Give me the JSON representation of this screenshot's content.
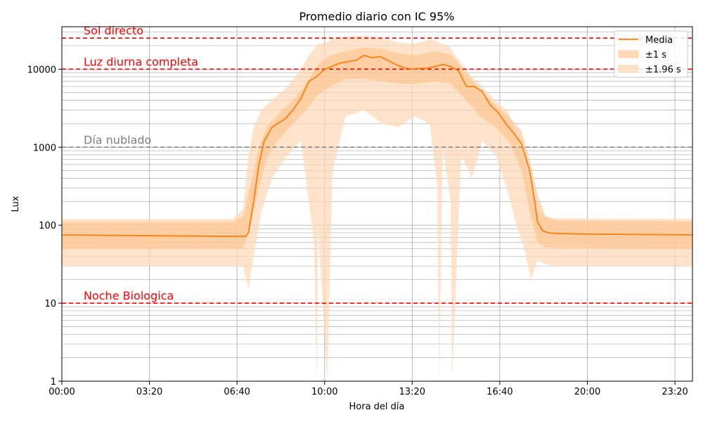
{
  "chart_data": {
    "type": "line",
    "title": "Promedio diario con IC 95%",
    "xlabel": "Hora del día",
    "ylabel": "Lux",
    "yscale": "log",
    "ylim": [
      1,
      35000
    ],
    "xlim_hours": [
      0,
      24
    ],
    "x_ticks": [
      {
        "hour": 0,
        "label": "00:00"
      },
      {
        "hour": 3.3333,
        "label": "03:20"
      },
      {
        "hour": 6.6667,
        "label": "06:40"
      },
      {
        "hour": 10,
        "label": "10:00"
      },
      {
        "hour": 13.3333,
        "label": "13:20"
      },
      {
        "hour": 16.6667,
        "label": "16:40"
      },
      {
        "hour": 20,
        "label": "20:00"
      },
      {
        "hour": 23.3333,
        "label": "23:20"
      }
    ],
    "y_ticks": [
      {
        "value": 1,
        "label": "1"
      },
      {
        "value": 10,
        "label": "10"
      },
      {
        "value": 100,
        "label": "100"
      },
      {
        "value": 1000,
        "label": "1000"
      },
      {
        "value": 10000,
        "label": "10000"
      }
    ],
    "grid": true,
    "legend_position": "top-right",
    "legend": [
      {
        "key": "mean",
        "label": "Media"
      },
      {
        "key": "sd1",
        "label": "±1 s"
      },
      {
        "key": "sd196",
        "label": "±1.96 s"
      }
    ],
    "colors": {
      "mean": "#ff7f0e",
      "band": "#ffd9b5",
      "ref_red": "#ff0000",
      "ref_gray": "#808080"
    },
    "reference_lines": [
      {
        "value": 25000,
        "label": "Sol directo",
        "color": "#ff0000"
      },
      {
        "value": 10000,
        "label": "Luz diurna completa",
        "color": "#ff0000"
      },
      {
        "value": 1000,
        "label": "Día nublado",
        "color": "#808080"
      },
      {
        "value": 10,
        "label": "Noche Biologica",
        "color": "#ff0000"
      }
    ],
    "series": [
      {
        "name": "Media",
        "hours": [
          0,
          2,
          4,
          6,
          7,
          7.1,
          7.3,
          7.5,
          7.7,
          8,
          8.3,
          8.5,
          8.8,
          9.1,
          9.4,
          9.7,
          10,
          10.3,
          10.6,
          10.9,
          11.2,
          11.5,
          11.8,
          12.1,
          12.4,
          12.7,
          13,
          13.3,
          13.6,
          13.9,
          14.2,
          14.5,
          14.8,
          15.1,
          15.4,
          15.7,
          16,
          16.3,
          16.6,
          16.9,
          17.2,
          17.5,
          17.8,
          18,
          18.1,
          18.3,
          18.5,
          18.7,
          19,
          20,
          22,
          24
        ],
        "lux": [
          75,
          74,
          73,
          72,
          72,
          80,
          200,
          600,
          1200,
          1800,
          2100,
          2300,
          3000,
          4200,
          7000,
          8000,
          10000,
          11000,
          12000,
          12500,
          13000,
          15000,
          14000,
          14500,
          13000,
          11500,
          10500,
          10000,
          10200,
          10300,
          10800,
          11500,
          10800,
          9500,
          6000,
          6000,
          5200,
          3500,
          2800,
          2000,
          1500,
          1100,
          500,
          200,
          110,
          85,
          80,
          79,
          78,
          77,
          76,
          75
        ]
      },
      {
        "name": "±1 s",
        "hours": [
          0,
          6.5,
          6.9,
          7.2,
          7.5,
          7.8,
          8.2,
          8.8,
          9.3,
          9.7,
          10.2,
          10.8,
          11.5,
          12.2,
          12.8,
          13.5,
          14.2,
          14.8,
          15.4,
          15.9,
          16.5,
          17,
          17.5,
          17.8,
          18.1,
          18.4,
          18.8,
          24
        ],
        "lower": [
          50,
          50,
          50,
          100,
          300,
          700,
          1200,
          2000,
          3000,
          4500,
          6000,
          7500,
          7500,
          7000,
          6500,
          6500,
          7000,
          6500,
          4000,
          2500,
          1800,
          1200,
          500,
          150,
          60,
          52,
          51,
          50
        ],
        "upper": [
          110,
          110,
          130,
          350,
          1000,
          1800,
          2600,
          4000,
          6500,
          11000,
          15000,
          17000,
          19000,
          18000,
          16000,
          15000,
          17000,
          15500,
          9000,
          5500,
          3500,
          2500,
          1600,
          700,
          250,
          130,
          115,
          112
        ]
      },
      {
        "name": "±1.96 s",
        "hours": [
          0,
          6.5,
          6.9,
          7.1,
          7.3,
          7.6,
          8,
          8.6,
          9.1,
          9.4,
          9.6,
          9.7,
          9.75,
          10.1,
          10.3,
          10.8,
          11.5,
          12.2,
          12.8,
          13.4,
          14,
          14.3,
          14.35,
          14.5,
          14.8,
          14.85,
          15.2,
          15.6,
          16,
          16.5,
          17,
          17.3,
          17.6,
          17.85,
          18.1,
          18.5,
          18.9,
          24
        ],
        "lower": [
          30,
          30,
          30,
          15,
          40,
          150,
          400,
          800,
          1200,
          200,
          60,
          1,
          100,
          1,
          500,
          2500,
          3000,
          2000,
          1800,
          2500,
          2000,
          300,
          1,
          1000,
          200,
          1,
          800,
          400,
          1200,
          800,
          250,
          100,
          50,
          20,
          35,
          31,
          30,
          30
        ],
        "upper": [
          120,
          120,
          160,
          800,
          1800,
          3000,
          4000,
          6000,
          10000,
          15000,
          18000,
          20000,
          21000,
          22000,
          25000,
          26000,
          27000,
          25000,
          22000,
          21000,
          24000,
          23000,
          22000,
          21000,
          19000,
          17000,
          12000,
          8000,
          6000,
          4000,
          2800,
          1500,
          700,
          300,
          150,
          125,
          122,
          120
        ]
      }
    ]
  }
}
